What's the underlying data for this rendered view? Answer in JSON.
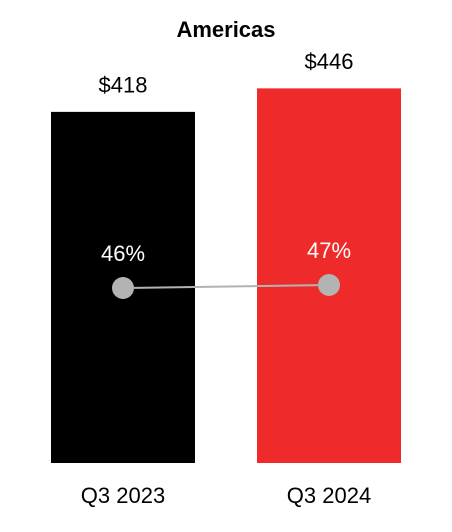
{
  "chart_data": {
    "type": "bar",
    "title": "Americas",
    "categories": [
      "Q3 2023",
      "Q3 2024"
    ],
    "series": [
      {
        "type": "bar",
        "colors": [
          "#000000",
          "#ee2a2a"
        ],
        "values": [
          418,
          446
        ],
        "value_labels": [
          "$418",
          "$446"
        ]
      },
      {
        "type": "line",
        "axis": "y2",
        "color": "#b3b3b3",
        "values": [
          46,
          47
        ],
        "value_labels": [
          "46%",
          "47%"
        ]
      }
    ],
    "ylim": [
      0,
      550
    ],
    "y2lim": [
      0,
      100
    ]
  }
}
